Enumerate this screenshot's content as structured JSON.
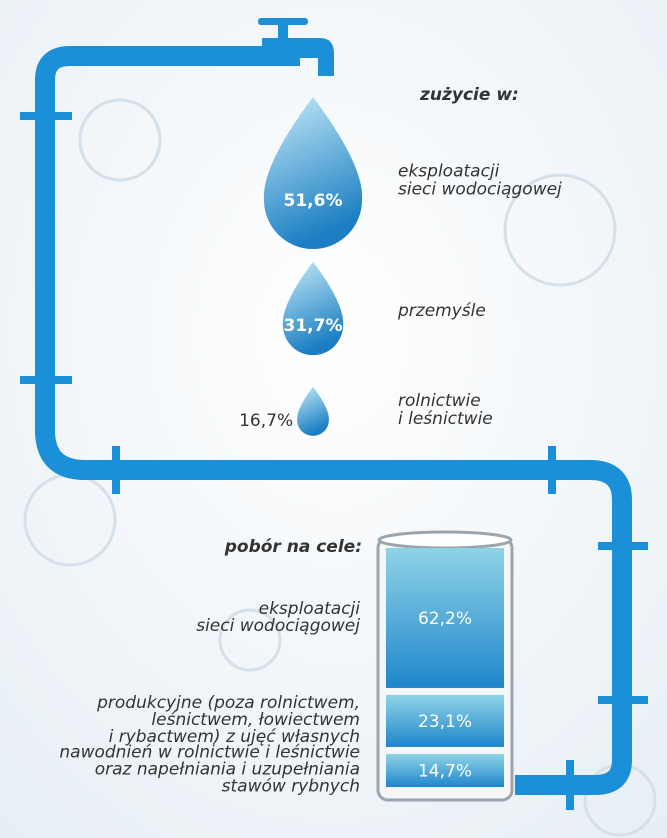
{
  "usage": {
    "title": "zużycie w:",
    "items": [
      {
        "label": [
          "eksploatacji",
          "sieci wodociągowej"
        ],
        "value": 51.6,
        "value_label": "51,6%"
      },
      {
        "label": [
          "przemyśle"
        ],
        "value": 31.7,
        "value_label": "31,7%"
      },
      {
        "label": [
          "rolnictwie",
          "i leśnictwie"
        ],
        "value": 16.7,
        "value_label": "16,7%"
      }
    ]
  },
  "intake": {
    "title": "pobór na cele:",
    "items": [
      {
        "label": [
          "eksploatacji",
          "sieci wodociągowej"
        ],
        "value": 62.2,
        "value_label": "62,2%"
      },
      {
        "label": [
          "produkcyjne (poza rolnictwem,",
          "leśnictwem, łowiectwem",
          "i rybactwem) z ujęć własnych"
        ],
        "value": 23.1,
        "value_label": "23,1%"
      },
      {
        "label": [
          "nawodnień w rolnictwie i leśnictwie",
          "oraz napełniania i uzupełniania",
          "stawów rybnych"
        ],
        "value": 14.7,
        "value_label": "14,7%"
      }
    ]
  }
}
